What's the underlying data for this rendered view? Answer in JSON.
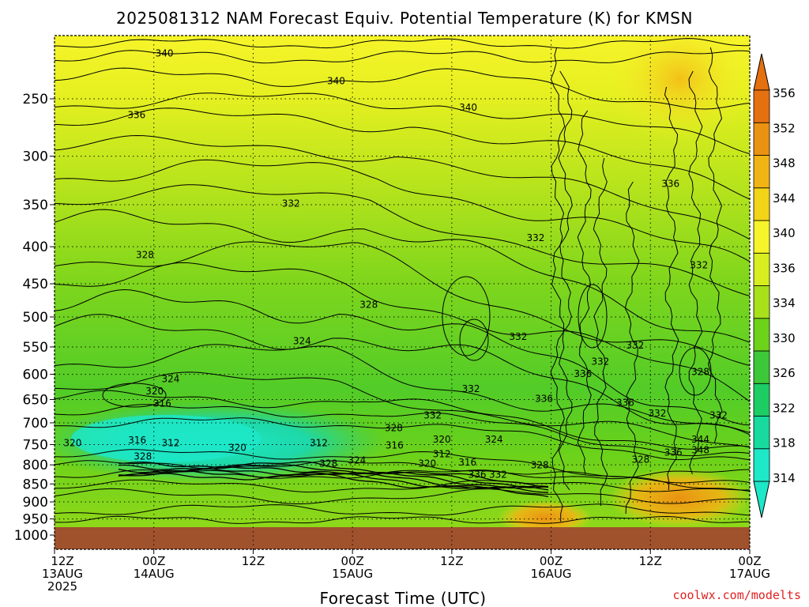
{
  "chart_data": {
    "type": "heatmap",
    "title": "2025081312 NAM Forecast Equiv. Potential Temperature (K) for KMSN",
    "xlabel": "Forecast Time (UTC)",
    "ylabel": "",
    "credit": "coolwx.com/modelts",
    "y_axis": {
      "scale": "pressure (inverted)",
      "range": [
        1000,
        200
      ],
      "ticks": [
        "250",
        "300",
        "350",
        "400",
        "450",
        "500",
        "550",
        "600",
        "650",
        "700",
        "750",
        "800",
        "850",
        "900",
        "950",
        "1000"
      ]
    },
    "x_axis": {
      "ticks": [
        {
          "line1": "12Z",
          "line2": "13AUG",
          "line3": "2025"
        },
        {
          "line1": "00Z",
          "line2": "14AUG",
          "line3": ""
        },
        {
          "line1": "12Z",
          "line2": "",
          "line3": ""
        },
        {
          "line1": "00Z",
          "line2": "15AUG",
          "line3": ""
        },
        {
          "line1": "12Z",
          "line2": "",
          "line3": ""
        },
        {
          "line1": "00Z",
          "line2": "16AUG",
          "line3": ""
        },
        {
          "line1": "12Z",
          "line2": "",
          "line3": ""
        },
        {
          "line1": "00Z",
          "line2": "17AUG",
          "line3": ""
        }
      ]
    },
    "grid": true,
    "colorbar": {
      "labels": [
        "314",
        "318",
        "322",
        "326",
        "330",
        "334",
        "336",
        "340",
        "344",
        "348",
        "352",
        "356"
      ],
      "colors": [
        "#1de8c8",
        "#17db9e",
        "#1ccd64",
        "#3cc838",
        "#6dd21a",
        "#a8e01a",
        "#d8ee20",
        "#f6f42a",
        "#f2d418",
        "#f0b414",
        "#ea9212",
        "#e47010"
      ]
    },
    "contour_labels": [
      {
        "text": "340",
        "x": 0.158,
        "y": 0.038
      },
      {
        "text": "340",
        "x": 0.405,
        "y": 0.094
      },
      {
        "text": "340",
        "x": 0.595,
        "y": 0.148
      },
      {
        "text": "336",
        "x": 0.118,
        "y": 0.163
      },
      {
        "text": "336",
        "x": 0.886,
        "y": 0.303
      },
      {
        "text": "332",
        "x": 0.34,
        "y": 0.343
      },
      {
        "text": "332",
        "x": 0.692,
        "y": 0.413
      },
      {
        "text": "332",
        "x": 0.927,
        "y": 0.469
      },
      {
        "text": "328",
        "x": 0.13,
        "y": 0.448
      },
      {
        "text": "328",
        "x": 0.452,
        "y": 0.549
      },
      {
        "text": "324",
        "x": 0.356,
        "y": 0.623
      },
      {
        "text": "332",
        "x": 0.667,
        "y": 0.614
      },
      {
        "text": "332",
        "x": 0.835,
        "y": 0.632
      },
      {
        "text": "332",
        "x": 0.785,
        "y": 0.665
      },
      {
        "text": "336",
        "x": 0.76,
        "y": 0.69
      },
      {
        "text": "328",
        "x": 0.929,
        "y": 0.686
      },
      {
        "text": "324",
        "x": 0.167,
        "y": 0.7
      },
      {
        "text": "320",
        "x": 0.144,
        "y": 0.725
      },
      {
        "text": "316",
        "x": 0.155,
        "y": 0.75
      },
      {
        "text": "332",
        "x": 0.599,
        "y": 0.72
      },
      {
        "text": "336",
        "x": 0.704,
        "y": 0.74
      },
      {
        "text": "336",
        "x": 0.821,
        "y": 0.748
      },
      {
        "text": "332",
        "x": 0.867,
        "y": 0.77
      },
      {
        "text": "332",
        "x": 0.955,
        "y": 0.774
      },
      {
        "text": "332",
        "x": 0.544,
        "y": 0.774
      },
      {
        "text": "328",
        "x": 0.488,
        "y": 0.8
      },
      {
        "text": "320",
        "x": 0.026,
        "y": 0.83
      },
      {
        "text": "316",
        "x": 0.119,
        "y": 0.825
      },
      {
        "text": "312",
        "x": 0.167,
        "y": 0.83
      },
      {
        "text": "320",
        "x": 0.263,
        "y": 0.84
      },
      {
        "text": "312",
        "x": 0.38,
        "y": 0.83
      },
      {
        "text": "316",
        "x": 0.489,
        "y": 0.835
      },
      {
        "text": "320",
        "x": 0.557,
        "y": 0.823
      },
      {
        "text": "324",
        "x": 0.632,
        "y": 0.823
      },
      {
        "text": "344",
        "x": 0.929,
        "y": 0.823
      },
      {
        "text": "348",
        "x": 0.929,
        "y": 0.845
      },
      {
        "text": "336",
        "x": 0.89,
        "y": 0.85
      },
      {
        "text": "328",
        "x": 0.127,
        "y": 0.858
      },
      {
        "text": "312",
        "x": 0.557,
        "y": 0.853
      },
      {
        "text": "328",
        "x": 0.394,
        "y": 0.872
      },
      {
        "text": "324",
        "x": 0.435,
        "y": 0.866
      },
      {
        "text": "320",
        "x": 0.536,
        "y": 0.872
      },
      {
        "text": "316",
        "x": 0.594,
        "y": 0.87
      },
      {
        "text": "328",
        "x": 0.698,
        "y": 0.875
      },
      {
        "text": "328",
        "x": 0.843,
        "y": 0.864
      },
      {
        "text": "336",
        "x": 0.608,
        "y": 0.895
      },
      {
        "text": "332",
        "x": 0.638,
        "y": 0.895
      }
    ]
  }
}
